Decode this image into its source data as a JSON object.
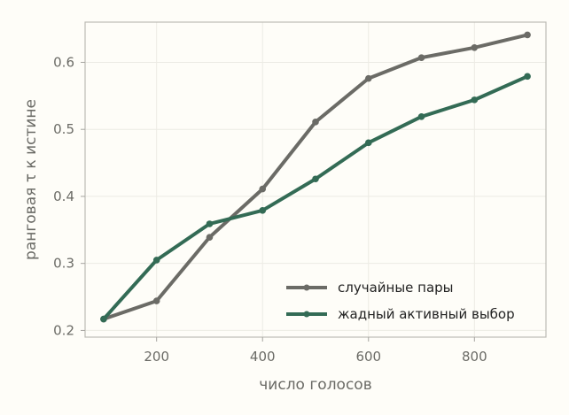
{
  "chart_data": {
    "type": "line",
    "xlabel": "число голосов",
    "ylabel": "ранговая τ к истине",
    "xlim": [
      65,
      935
    ],
    "ylim": [
      0.19,
      0.66
    ],
    "xticks": [
      200,
      400,
      600,
      800
    ],
    "yticks": [
      0.2,
      0.3,
      0.4,
      0.5,
      0.6
    ],
    "grid": true,
    "legend_position": "bottom-right",
    "x": [
      100,
      200,
      300,
      400,
      500,
      600,
      700,
      800,
      900
    ],
    "series": [
      {
        "name": "случайные пары",
        "color": "#6b6b66",
        "values": [
          0.217,
          0.244,
          0.339,
          0.411,
          0.511,
          0.576,
          0.607,
          0.622,
          0.641
        ]
      },
      {
        "name": "жадный активный выбор",
        "color": "#336b55",
        "values": [
          0.217,
          0.305,
          0.359,
          0.379,
          0.426,
          0.48,
          0.519,
          0.544,
          0.579
        ]
      }
    ]
  }
}
